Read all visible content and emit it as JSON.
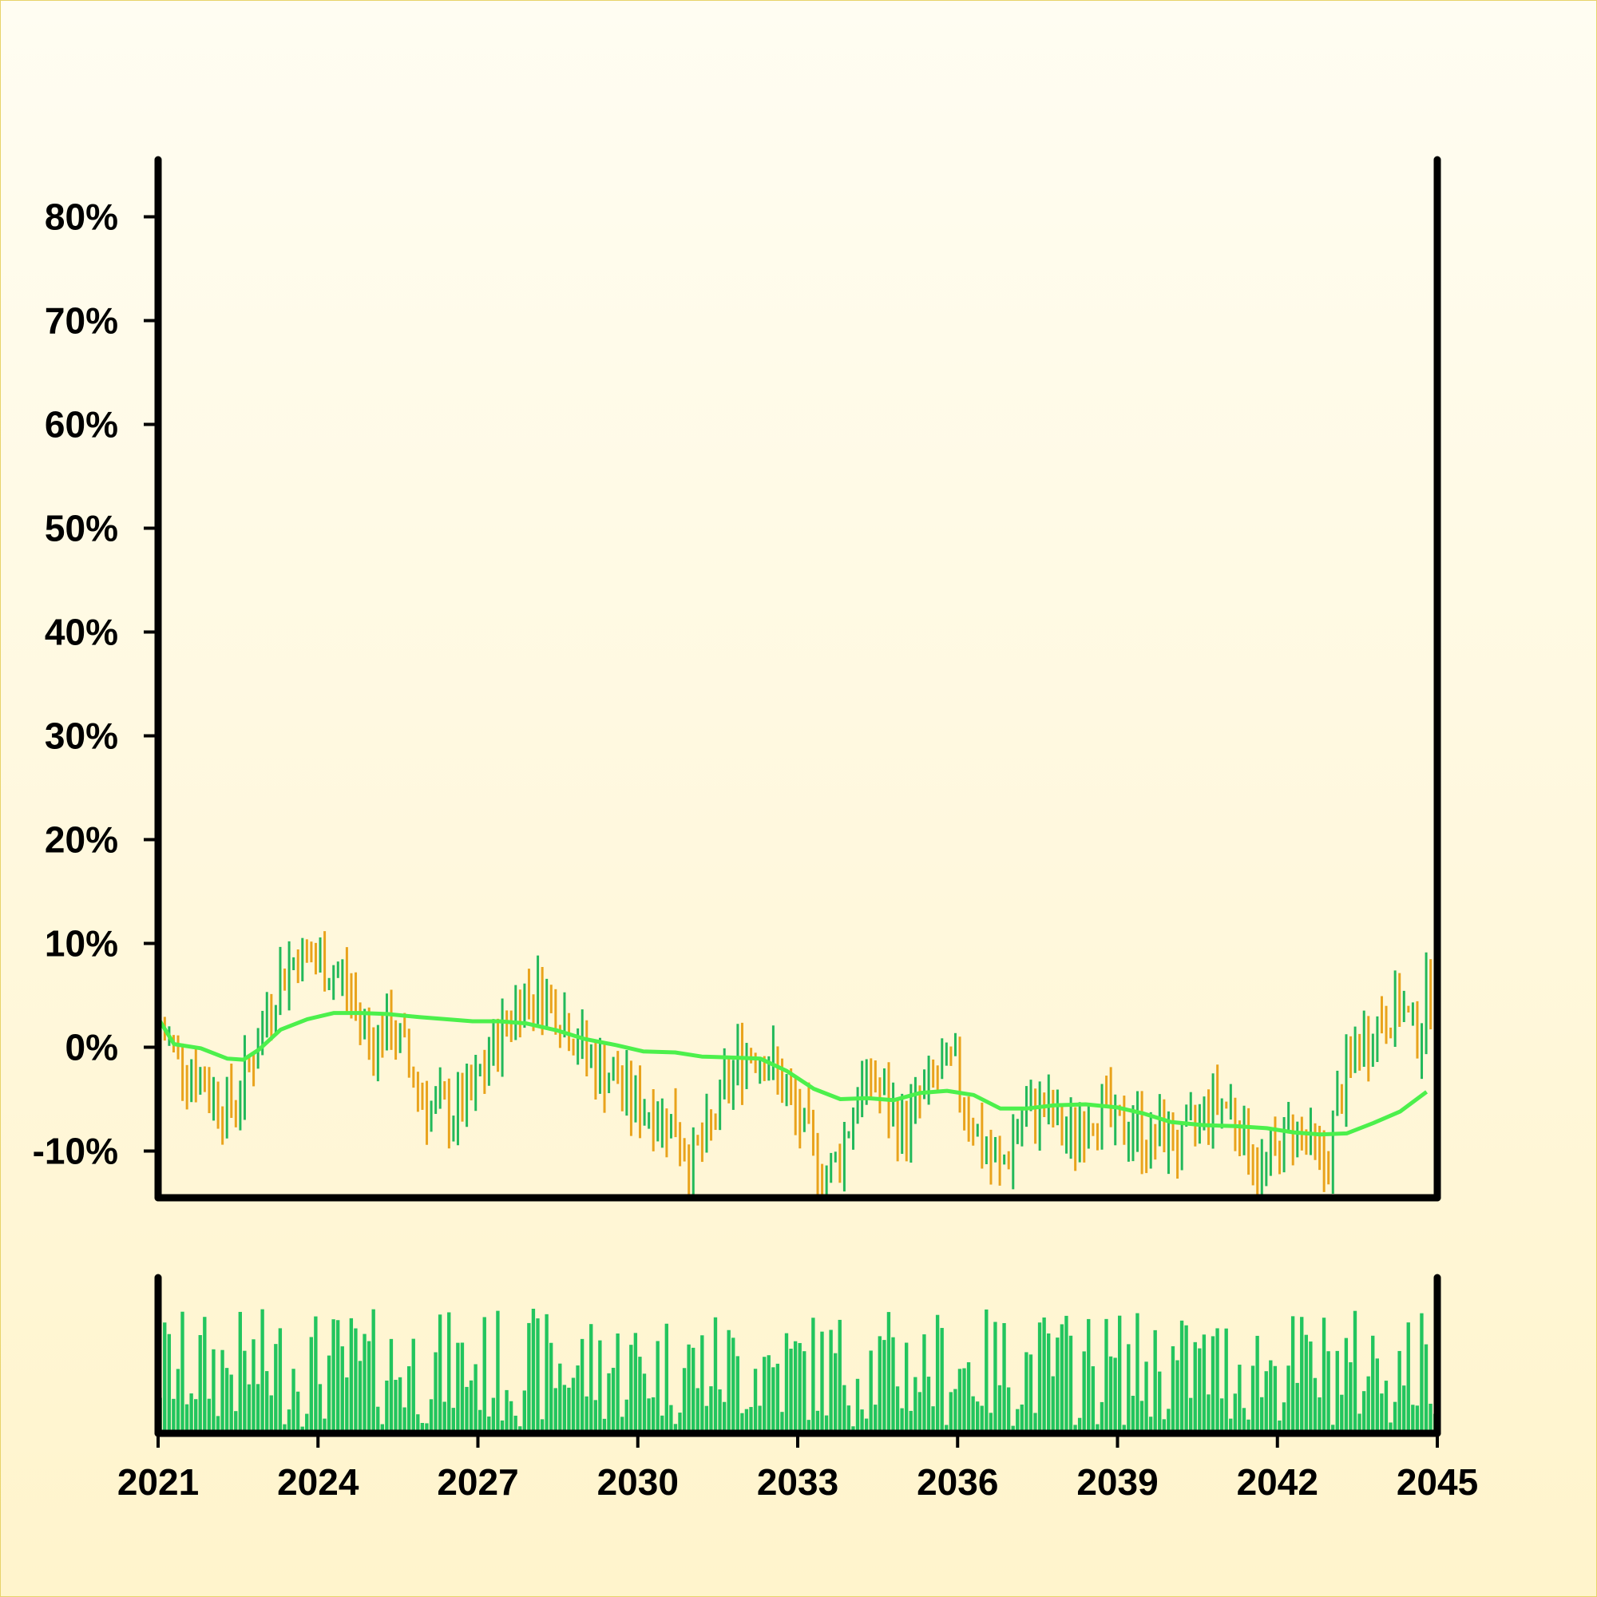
{
  "chart_data": [
    {
      "type": "ohlc",
      "title": "",
      "xlabel": "",
      "ylabel": "",
      "x_ticks": [
        "2021",
        "2024",
        "2027",
        "2030",
        "2033",
        "2036",
        "2039",
        "2042",
        "2045"
      ],
      "y_ticks": [
        "-10%",
        "0%",
        "10%",
        "20%",
        "30%",
        "40%",
        "50%",
        "60%",
        "70%",
        "80%"
      ],
      "y_tick_values": [
        -10,
        0,
        10,
        20,
        30,
        40,
        50,
        60,
        70,
        80
      ],
      "xlim": [
        2021,
        2045
      ],
      "ylim": [
        -14.5,
        85.5
      ],
      "up_color": "#22b95a",
      "down_color": "#e9a31c",
      "period": "monthly",
      "series": [
        {
          "kind": "ohlc",
          "anchors": [
            [
              2021.0,
              2.0
            ],
            [
              2021.5,
              -1.5
            ],
            [
              2021.9,
              -3.5
            ],
            [
              2022.3,
              -6.0
            ],
            [
              2022.6,
              -3.5
            ],
            [
              2022.9,
              1.0
            ],
            [
              2023.2,
              6.0
            ],
            [
              2023.6,
              9.0
            ],
            [
              2024.0,
              8.0
            ],
            [
              2024.4,
              7.0
            ],
            [
              2024.7,
              4.0
            ],
            [
              2025.0,
              0.5
            ],
            [
              2025.4,
              2.0
            ],
            [
              2025.8,
              -3.0
            ],
            [
              2026.1,
              -6.0
            ],
            [
              2026.5,
              -6.5
            ],
            [
              2026.9,
              -5.0
            ],
            [
              2027.2,
              -1.0
            ],
            [
              2027.6,
              3.0
            ],
            [
              2027.9,
              5.5
            ],
            [
              2028.3,
              5.0
            ],
            [
              2028.6,
              3.0
            ],
            [
              2028.9,
              0.5
            ],
            [
              2029.2,
              -2.0
            ],
            [
              2029.6,
              -3.0
            ],
            [
              2029.9,
              -5.5
            ],
            [
              2030.3,
              -6.0
            ],
            [
              2030.7,
              -7.5
            ],
            [
              2031.0,
              -11.0
            ],
            [
              2031.3,
              -9.0
            ],
            [
              2031.6,
              -4.5
            ],
            [
              2031.9,
              -1.0
            ],
            [
              2032.2,
              0.0
            ],
            [
              2032.5,
              -1.5
            ],
            [
              2032.8,
              -5.0
            ],
            [
              2033.2,
              -9.0
            ],
            [
              2033.5,
              -13.0
            ],
            [
              2033.8,
              -10.0
            ],
            [
              2034.1,
              -5.0
            ],
            [
              2034.4,
              -3.0
            ],
            [
              2034.7,
              -6.0
            ],
            [
              2035.0,
              -8.0
            ],
            [
              2035.3,
              -5.0
            ],
            [
              2035.6,
              -3.0
            ],
            [
              2035.9,
              -2.0
            ],
            [
              2036.2,
              -6.0
            ],
            [
              2036.5,
              -10.0
            ],
            [
              2036.8,
              -12.0
            ],
            [
              2037.1,
              -8.0
            ],
            [
              2037.5,
              -5.5
            ],
            [
              2037.8,
              -7.0
            ],
            [
              2038.1,
              -9.0
            ],
            [
              2038.4,
              -6.5
            ],
            [
              2038.7,
              -5.5
            ],
            [
              2039.0,
              -8.5
            ],
            [
              2039.3,
              -7.0
            ],
            [
              2039.6,
              -9.5
            ],
            [
              2039.9,
              -8.0
            ],
            [
              2040.2,
              -10.0
            ],
            [
              2040.5,
              -7.0
            ],
            [
              2040.8,
              -5.0
            ],
            [
              2041.1,
              -5.5
            ],
            [
              2041.4,
              -9.0
            ],
            [
              2041.7,
              -12.0
            ],
            [
              2042.0,
              -10.0
            ],
            [
              2042.3,
              -7.5
            ],
            [
              2042.6,
              -9.5
            ],
            [
              2042.9,
              -12.0
            ],
            [
              2043.1,
              -6.0
            ],
            [
              2043.4,
              -1.0
            ],
            [
              2043.7,
              1.0
            ],
            [
              2044.0,
              3.0
            ],
            [
              2044.3,
              4.0
            ],
            [
              2044.6,
              1.0
            ],
            [
              2044.8,
              5.0
            ],
            [
              2045.0,
              8.0
            ]
          ]
        },
        {
          "kind": "line",
          "color": "#4cf04c",
          "points": [
            [
              2021.0,
              2.8
            ],
            [
              2021.3,
              0.3
            ],
            [
              2021.8,
              -0.1
            ],
            [
              2022.3,
              -1.1
            ],
            [
              2022.6,
              -1.2
            ],
            [
              2022.9,
              -0.2
            ],
            [
              2023.3,
              1.7
            ],
            [
              2023.8,
              2.7
            ],
            [
              2024.3,
              3.3
            ],
            [
              2024.8,
              3.3
            ],
            [
              2025.3,
              3.2
            ],
            [
              2025.9,
              2.9
            ],
            [
              2026.4,
              2.7
            ],
            [
              2026.9,
              2.5
            ],
            [
              2027.4,
              2.5
            ],
            [
              2027.9,
              2.3
            ],
            [
              2028.5,
              1.6
            ],
            [
              2029.0,
              0.8
            ],
            [
              2029.6,
              0.2
            ],
            [
              2030.1,
              -0.4
            ],
            [
              2030.7,
              -0.5
            ],
            [
              2031.2,
              -0.9
            ],
            [
              2031.8,
              -1.0
            ],
            [
              2032.3,
              -1.1
            ],
            [
              2032.8,
              -2.3
            ],
            [
              2033.3,
              -4.0
            ],
            [
              2033.8,
              -5.0
            ],
            [
              2034.3,
              -4.9
            ],
            [
              2034.8,
              -5.1
            ],
            [
              2035.3,
              -4.4
            ],
            [
              2035.8,
              -4.2
            ],
            [
              2036.3,
              -4.6
            ],
            [
              2036.8,
              -5.9
            ],
            [
              2037.3,
              -5.9
            ],
            [
              2037.8,
              -5.6
            ],
            [
              2038.4,
              -5.5
            ],
            [
              2039.0,
              -5.8
            ],
            [
              2039.5,
              -6.4
            ],
            [
              2040.0,
              -7.2
            ],
            [
              2040.6,
              -7.5
            ],
            [
              2041.2,
              -7.6
            ],
            [
              2041.8,
              -7.8
            ],
            [
              2042.3,
              -8.2
            ],
            [
              2042.8,
              -8.4
            ],
            [
              2043.3,
              -8.3
            ],
            [
              2043.8,
              -7.3
            ],
            [
              2044.3,
              -6.2
            ],
            [
              2044.8,
              -4.3
            ]
          ]
        }
      ]
    },
    {
      "type": "bar",
      "title": "",
      "color": "#22c55e",
      "x_ticks": [
        "2021",
        "2024",
        "2027",
        "2030",
        "2033",
        "2036",
        "2039",
        "2042",
        "2045"
      ],
      "xlim": [
        2021,
        2045
      ],
      "ylim": [
        0,
        1
      ],
      "note_values": "relative volume per month (0-1), pseudo-random profile between 0.05 and 0.95"
    }
  ]
}
